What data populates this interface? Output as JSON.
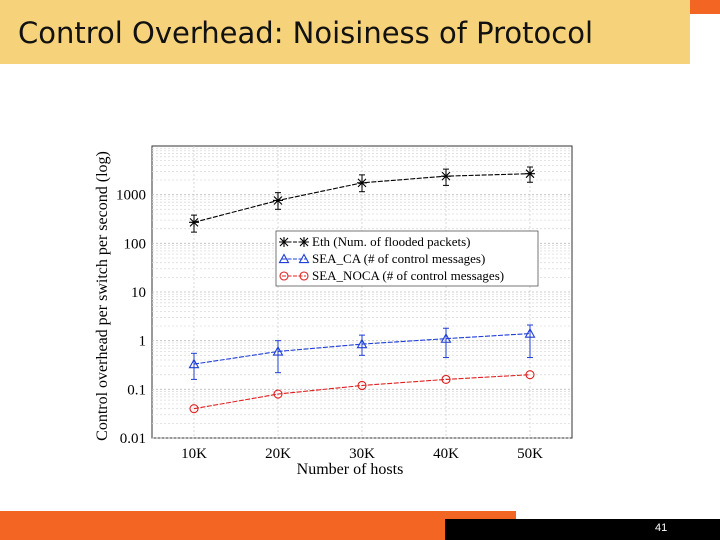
{
  "slide": {
    "title": "Control Overhead: Noisiness of Protocol",
    "page_number": "41"
  },
  "colors": {
    "title_bg": "#f6d27a",
    "accent": "#f26522",
    "eth": "#000000",
    "sea_ca": "#1f3fd6",
    "sea_noca": "#e02020"
  },
  "chart_data": {
    "type": "line",
    "title": "",
    "xlabel": "Number of hosts",
    "ylabel": "Control overhead per switch per second (log)",
    "yscale": "log",
    "ylim": [
      0.01,
      10000
    ],
    "categories": [
      "10K",
      "20K",
      "30K",
      "40K",
      "50K"
    ],
    "y_ticks": [
      "0.01",
      "0.1",
      "1",
      "10",
      "100",
      "1000"
    ],
    "y_tick_values": [
      0.01,
      0.1,
      1,
      10,
      100,
      1000
    ],
    "legend_position": "center",
    "grid": true,
    "series": [
      {
        "name": "Eth (Num. of flooded packets)",
        "marker": "star",
        "values": [
          270,
          760,
          1750,
          2400,
          2700
        ],
        "err_low": [
          170,
          500,
          1150,
          1550,
          1800
        ],
        "err_high": [
          380,
          1100,
          2550,
          3350,
          3700
        ]
      },
      {
        "name": "SEA_CA (# of control messages)",
        "marker": "triangle",
        "values": [
          0.33,
          0.6,
          0.85,
          1.1,
          1.4
        ],
        "err_low": [
          0.16,
          0.22,
          0.5,
          0.45,
          0.45
        ],
        "err_high": [
          0.55,
          1.0,
          1.3,
          1.8,
          2.1
        ]
      },
      {
        "name": "SEA_NOCA (# of control messages)",
        "marker": "circle",
        "values": [
          0.04,
          0.08,
          0.12,
          0.16,
          0.2
        ],
        "err_low": [
          0.04,
          0.08,
          0.12,
          0.16,
          0.2
        ],
        "err_high": [
          0.04,
          0.08,
          0.12,
          0.16,
          0.2
        ]
      }
    ]
  }
}
